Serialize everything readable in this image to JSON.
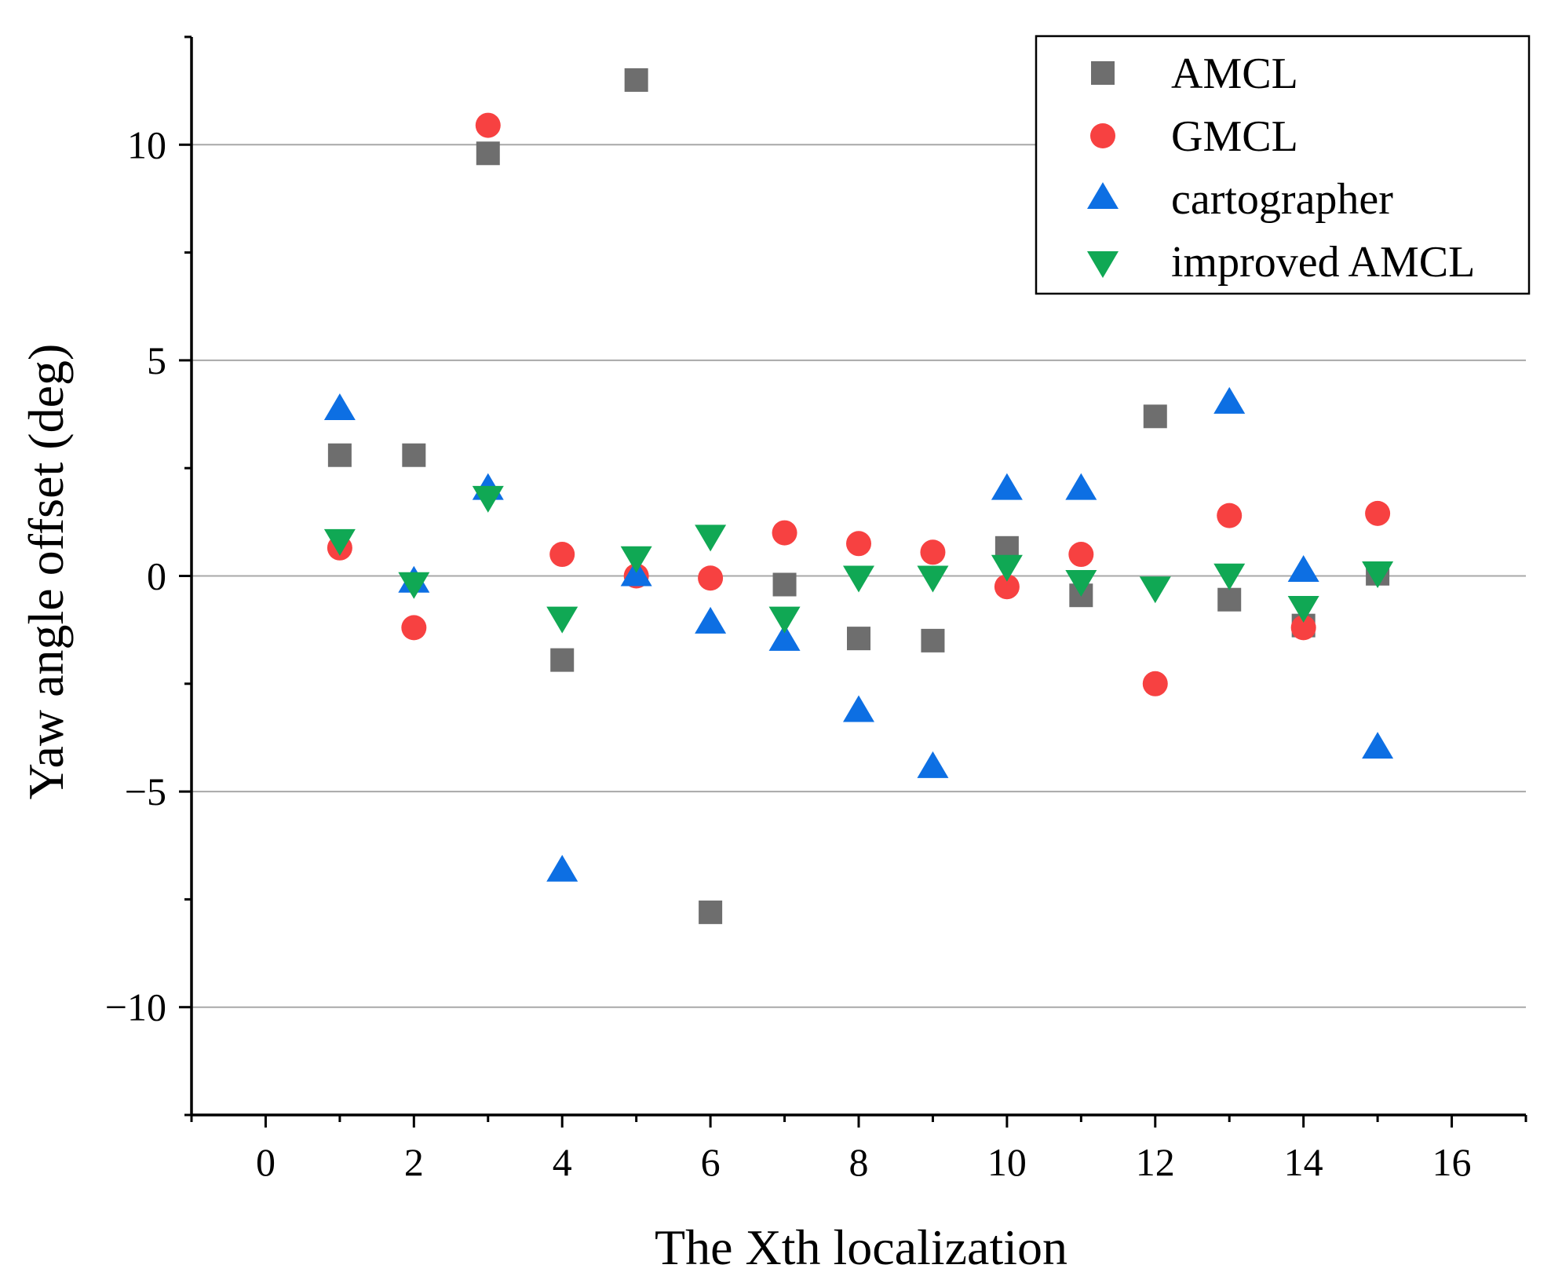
{
  "chart_data": {
    "type": "scatter",
    "xlabel": "The Xth localization",
    "ylabel": "Yaw angle offset (deg)",
    "xlim": [
      -1,
      17
    ],
    "ylim": [
      -12.5,
      12.5
    ],
    "xticks": [
      0,
      2,
      4,
      6,
      8,
      10,
      12,
      14,
      16
    ],
    "yticks": [
      -10,
      -5,
      0,
      5,
      10
    ],
    "ytick_labels": [
      "−10",
      "−5",
      "0",
      "5",
      "10"
    ],
    "grid": "horizontal",
    "legend_position": "top-right",
    "series": [
      {
        "name": "AMCL",
        "marker": "square",
        "color": "#6e6e6e",
        "x": [
          1,
          2,
          3,
          4,
          5,
          6,
          7,
          8,
          9,
          10,
          11,
          12,
          13,
          14,
          15
        ],
        "y": [
          2.8,
          2.8,
          9.8,
          -1.95,
          11.5,
          -7.8,
          -0.2,
          -1.45,
          -1.5,
          0.65,
          -0.45,
          3.7,
          -0.55,
          -1.15,
          0.05
        ]
      },
      {
        "name": "GMCL",
        "marker": "circle",
        "color": "#f74141",
        "x": [
          1,
          2,
          3,
          4,
          5,
          6,
          7,
          8,
          9,
          10,
          11,
          12,
          13,
          14,
          15
        ],
        "y": [
          0.65,
          -1.2,
          10.45,
          0.5,
          0.0,
          -0.05,
          1.0,
          0.75,
          0.55,
          -0.25,
          0.5,
          -2.5,
          1.4,
          -1.2,
          1.45
        ]
      },
      {
        "name": "cartographer",
        "marker": "triangle-up",
        "color": "#0d6fe3",
        "x": [
          1,
          2,
          3,
          4,
          5,
          6,
          7,
          8,
          9,
          10,
          11,
          12,
          13,
          14,
          15
        ],
        "y": [
          3.85,
          -0.15,
          2.0,
          -6.85,
          0.0,
          -1.1,
          -1.5,
          -3.15,
          -4.45,
          2.0,
          2.0,
          null,
          4.0,
          0.1,
          -4.0
        ]
      },
      {
        "name": "improved AMCL",
        "marker": "triangle-down",
        "color": "#10a854",
        "x": [
          1,
          2,
          3,
          4,
          5,
          6,
          7,
          8,
          9,
          10,
          11,
          12,
          13,
          14,
          15
        ],
        "y": [
          0.85,
          -0.15,
          1.85,
          -0.95,
          0.45,
          0.95,
          -0.95,
          0.0,
          0.0,
          0.25,
          -0.1,
          -0.25,
          0.05,
          -0.7,
          0.1
        ]
      }
    ]
  }
}
